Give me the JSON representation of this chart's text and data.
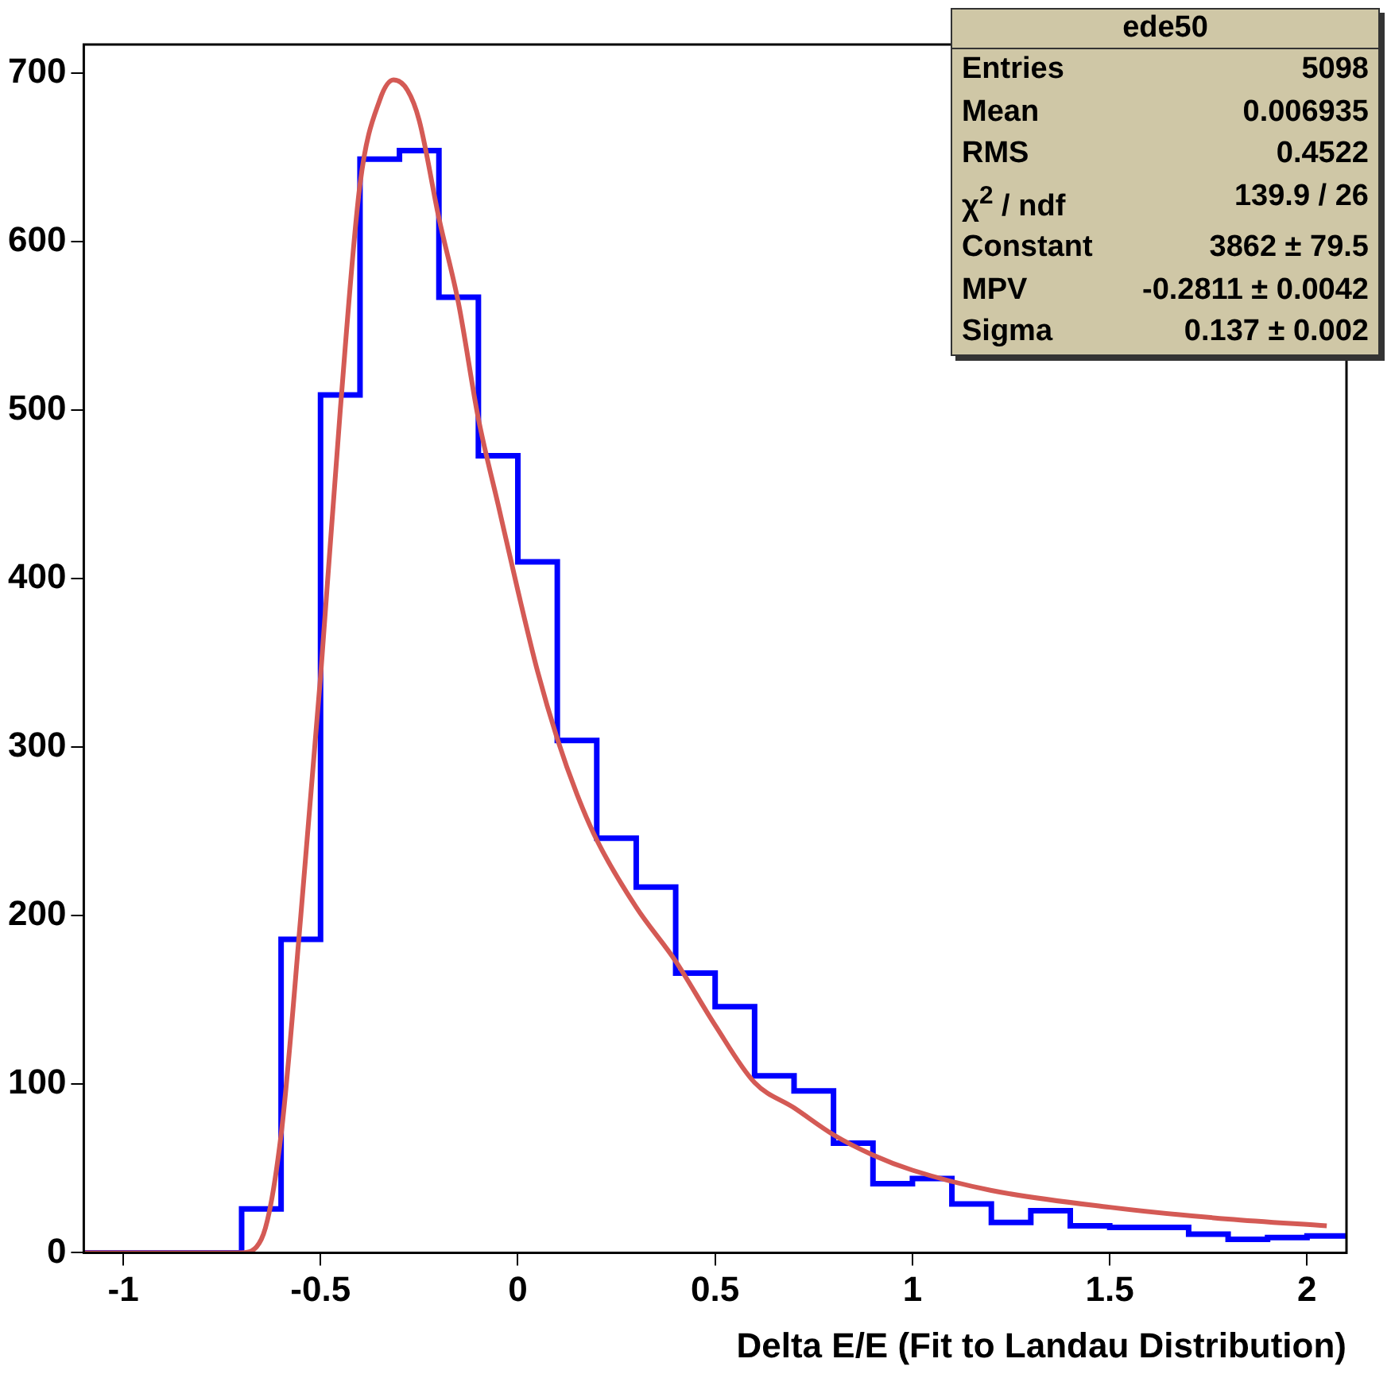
{
  "chart_data": {
    "type": "histogram",
    "xlabel": "Delta E/E (Fit to Landau Distribution)",
    "bins": [
      -1.1,
      -1.0,
      -0.9,
      -0.8,
      -0.7,
      -0.6,
      -0.5,
      -0.4,
      -0.3,
      -0.2,
      -0.1,
      0,
      0.1,
      0.2,
      0.3,
      0.4,
      0.5,
      0.6,
      0.7,
      0.8,
      0.9,
      1.0,
      1.1,
      1.2,
      1.3,
      1.4,
      1.5,
      1.6,
      1.7,
      1.8,
      1.9,
      2.0,
      2.1
    ],
    "series": [
      {
        "color": "#0000ff",
        "values": [
          0,
          0,
          0,
          0,
          26,
          186,
          509,
          649,
          654,
          567,
          473,
          410,
          304,
          246,
          217,
          166,
          146,
          105,
          96,
          65,
          41,
          44,
          29,
          18,
          25,
          16,
          15,
          15,
          11,
          8,
          9,
          10
        ]
      },
      {
        "type": "line",
        "color": "#d45a55",
        "x": [
          -1.1,
          -0.7,
          -0.65,
          -0.6,
          -0.55,
          -0.5,
          -0.45,
          -0.4,
          -0.35,
          -0.315,
          -0.28,
          -0.25,
          -0.2,
          -0.15,
          -0.1,
          -0.05,
          0,
          0.05,
          0.1,
          0.15,
          0.2,
          0.3,
          0.4,
          0.5,
          0.6,
          0.7,
          0.8,
          0.9,
          1.0,
          1.2,
          1.5,
          1.8,
          2.05
        ],
        "values": [
          0,
          0,
          8,
          70,
          200,
          342,
          500,
          634,
          684,
          696,
          690,
          672,
          614,
          563,
          495,
          444,
          393,
          345,
          305,
          272,
          245,
          205,
          173,
          135,
          101,
          86,
          70,
          58,
          49,
          37,
          27,
          20,
          16
        ]
      }
    ],
    "xlim": [
      -1.1,
      2.1
    ],
    "xticks": [
      -1,
      -0.5,
      0,
      0.5,
      1,
      1.5,
      2
    ],
    "ylim": [
      0,
      717
    ],
    "yticks": [
      0,
      100,
      200,
      300,
      400,
      500,
      600,
      700
    ],
    "grid": false,
    "legend": false,
    "marker": "none",
    "annotations": [
      "ede50",
      "Entries",
      "5098",
      "Mean",
      "0.006935",
      "RMS",
      "0.4522",
      "χ$^{2}$ / ndf",
      "139.9 / 26",
      "Constant",
      "3862 ± 79.5",
      "MPV",
      "-0.2811 ± 0.0042",
      "Sigma",
      "0.137 ± 0.002"
    ]
  }
}
